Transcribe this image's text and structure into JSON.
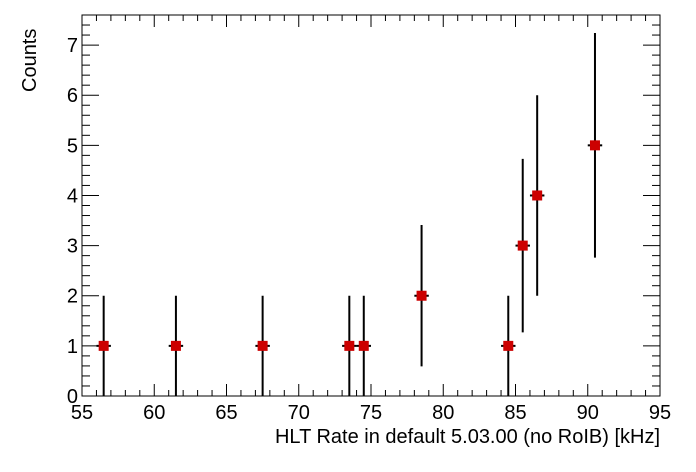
{
  "chart_data": {
    "type": "scatter",
    "title": "",
    "xlabel": "HLT Rate in default 5.03.00 (no RoIB) [kHz]",
    "ylabel": "Counts",
    "xlim": [
      55,
      95
    ],
    "ylim": [
      0,
      7.6
    ],
    "x_ticks": [
      55,
      60,
      65,
      70,
      75,
      80,
      85,
      90,
      95
    ],
    "y_ticks": [
      0,
      1,
      2,
      3,
      4,
      5,
      6,
      7
    ],
    "grid": false,
    "legend": "none",
    "marker_color": "#cc0000",
    "series": [
      {
        "points": [
          {
            "x": 56.5,
            "y": 1,
            "ylow": 0,
            "yhigh": 2
          },
          {
            "x": 61.5,
            "y": 1,
            "ylow": 0,
            "yhigh": 2
          },
          {
            "x": 67.5,
            "y": 1,
            "ylow": 0,
            "yhigh": 2
          },
          {
            "x": 73.5,
            "y": 1,
            "ylow": 0,
            "yhigh": 2
          },
          {
            "x": 74.5,
            "y": 1,
            "ylow": 0,
            "yhigh": 2
          },
          {
            "x": 78.5,
            "y": 2,
            "ylow": 0.59,
            "yhigh": 3.41
          },
          {
            "x": 84.5,
            "y": 1,
            "ylow": 0,
            "yhigh": 2
          },
          {
            "x": 85.5,
            "y": 3,
            "ylow": 1.27,
            "yhigh": 4.73
          },
          {
            "x": 86.5,
            "y": 4,
            "ylow": 2,
            "yhigh": 6
          },
          {
            "x": 90.5,
            "y": 5,
            "ylow": 2.76,
            "yhigh": 7.24
          }
        ]
      }
    ]
  }
}
